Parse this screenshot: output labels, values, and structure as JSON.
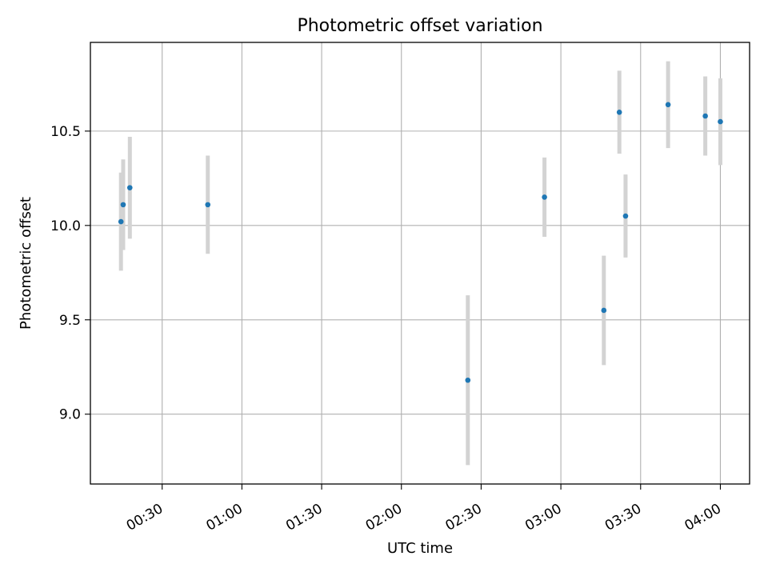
{
  "chart_data": {
    "type": "scatter",
    "title": "Photometric offset variation",
    "xlabel": "UTC time",
    "ylabel": "Photometric offset",
    "x_tick_labels": [
      "00:30",
      "01:00",
      "01:30",
      "02:00",
      "02:30",
      "03:00",
      "03:30",
      "04:00"
    ],
    "x_ticks": [
      "00:30",
      "01:00",
      "01:30",
      "02:00",
      "02:30",
      "03:00",
      "03:30",
      "04:00"
    ],
    "y_ticks": [
      9.0,
      9.5,
      10.0,
      10.5
    ],
    "y_tick_labels": [
      "9.0",
      "9.5",
      "10.0",
      "10.5"
    ],
    "xlim": [
      "00:03",
      "04:11"
    ],
    "ylim": [
      8.63,
      10.97
    ],
    "grid": true,
    "series": [
      {
        "x": [
          "00:14:30",
          "00:15:20",
          "00:17:50",
          "00:47:10",
          "02:25:00",
          "02:53:50",
          "03:16:10",
          "03:22:00",
          "03:24:20",
          "03:40:20",
          "03:54:20",
          "04:00:00"
        ],
        "y": [
          10.02,
          10.11,
          10.2,
          10.11,
          9.18,
          10.15,
          9.55,
          10.6,
          10.05,
          10.64,
          10.58,
          10.55
        ],
        "err": [
          0.26,
          0.24,
          0.27,
          0.26,
          0.45,
          0.21,
          0.29,
          0.22,
          0.22,
          0.23,
          0.21,
          0.23
        ]
      }
    ],
    "marker_color": "#1f77b4",
    "errorbar_color": "#d3d3d3"
  }
}
